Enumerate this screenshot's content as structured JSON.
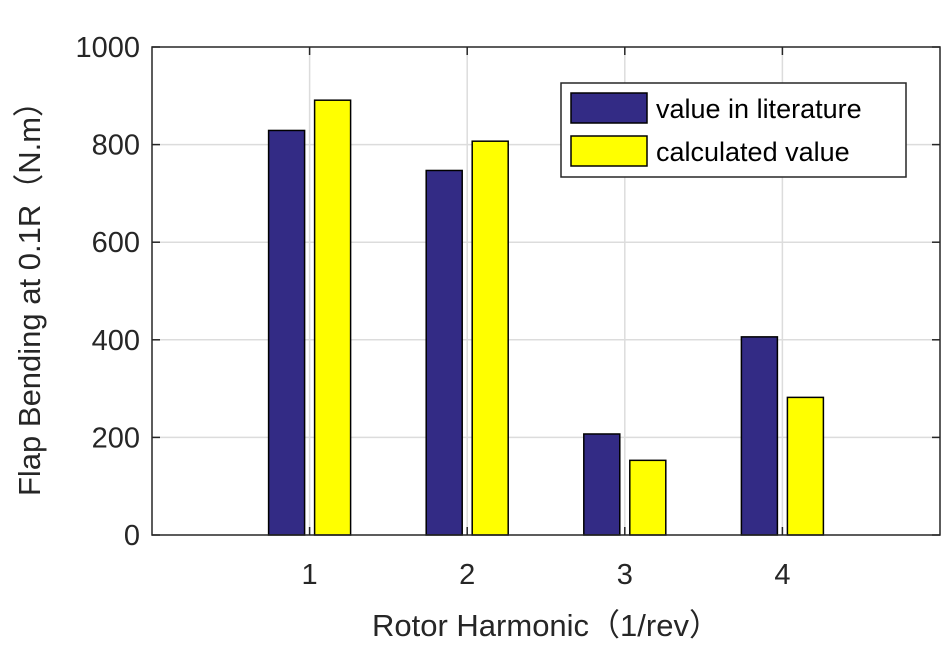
{
  "chart_data": {
    "type": "bar",
    "categories": [
      "1",
      "2",
      "3",
      "4"
    ],
    "series": [
      {
        "name": "value in literature",
        "values": [
          829,
          747,
          207,
          406
        ],
        "color": "#332b85"
      },
      {
        "name": "calculated value",
        "values": [
          891,
          807,
          153,
          282
        ],
        "color": "#ffff00"
      }
    ],
    "xlabel": "Rotor Harmonic（1/rev）",
    "ylabel": "Flap Bending at 0.1R（N.m）",
    "ylim": [
      0,
      1000
    ],
    "xlim": [
      0,
      5
    ],
    "yticks": [
      0,
      200,
      400,
      600,
      800,
      1000
    ],
    "grid": true,
    "legend_position": "top-right"
  }
}
